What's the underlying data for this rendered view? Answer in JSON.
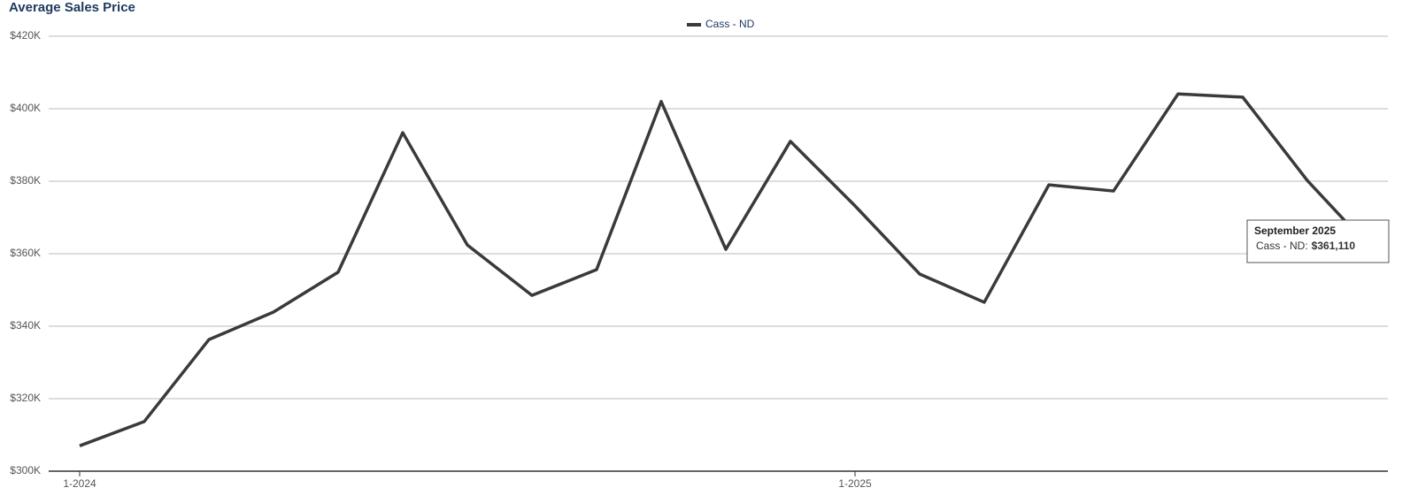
{
  "chart_data": {
    "type": "line",
    "title": "Average Sales Price",
    "categories": [
      "1-2024",
      null,
      null,
      null,
      null,
      null,
      null,
      null,
      null,
      null,
      null,
      null,
      "1-2025",
      null,
      null,
      null,
      null,
      null,
      null,
      null,
      null
    ],
    "series": [
      {
        "name": "Cass - ND",
        "color": "#3a3a3a",
        "values": [
          307000,
          313700,
          336300,
          343900,
          354900,
          393400,
          362400,
          348500,
          355600,
          402000,
          361200,
          391000,
          373200,
          354400,
          346600,
          379000,
          377300,
          404100,
          403200,
          380200,
          361110
        ]
      }
    ],
    "ylim": [
      300000,
      420000
    ],
    "yticks": [
      {
        "value": 300000,
        "label": "$300K"
      },
      {
        "value": 320000,
        "label": "$320K"
      },
      {
        "value": 340000,
        "label": "$340K"
      },
      {
        "value": 360000,
        "label": "$360K"
      },
      {
        "value": 380000,
        "label": "$380K"
      },
      {
        "value": 400000,
        "label": "$400K"
      },
      {
        "value": 420000,
        "label": "$420K"
      }
    ],
    "grid": true,
    "legend": "top",
    "tooltip": {
      "title": "September 2025",
      "label": "Cass - ND:",
      "value_label": "$361,110"
    }
  }
}
